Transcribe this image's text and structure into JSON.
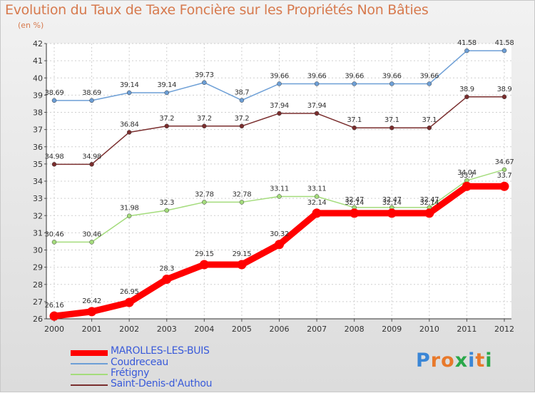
{
  "chart_data": {
    "type": "line",
    "title": "Evolution du Taux de Taxe Foncière sur les Propriétés Non Bâties",
    "subtitle": "(en %)",
    "xlabel": "",
    "ylabel": "",
    "x": [
      "2000",
      "2001",
      "2002",
      "2003",
      "2004",
      "2005",
      "2006",
      "2007",
      "2008",
      "2009",
      "2010",
      "2011",
      "2012"
    ],
    "ylim": [
      26,
      42
    ],
    "yticks": [
      "26",
      "27",
      "28",
      "29",
      "30",
      "31",
      "32",
      "33",
      "34",
      "35",
      "36",
      "37",
      "38",
      "39",
      "40",
      "41",
      "42"
    ],
    "legend_position": "bottom-left",
    "series": [
      {
        "name": "MAROLLES-LES-BUIS",
        "color": "#ff0000",
        "values": [
          26.16,
          26.42,
          26.95,
          28.3,
          29.15,
          29.15,
          30.32,
          32.14,
          32.14,
          32.14,
          32.14,
          33.7,
          33.7
        ],
        "labels": [
          "26.16",
          "26.42",
          "26.95",
          "28.3",
          "29.15",
          "29.15",
          "30.32",
          "32.14",
          "32.14",
          "32.14",
          "32.14",
          "33.7",
          "33.7"
        ]
      },
      {
        "name": "Coudreceau",
        "color": "#6d9fd6",
        "values": [
          38.69,
          38.69,
          39.14,
          39.14,
          39.73,
          38.7,
          39.66,
          39.66,
          39.66,
          39.66,
          39.66,
          41.58,
          41.58
        ],
        "labels": [
          "38.69",
          "38.69",
          "39.14",
          "39.14",
          "39.73",
          "38.7",
          "39.66",
          "39.66",
          "39.66",
          "39.66",
          "39.66",
          "41.58",
          "41.58"
        ]
      },
      {
        "name": "Frétigny",
        "color": "#a4dc7c",
        "values": [
          30.46,
          30.46,
          31.98,
          32.3,
          32.78,
          32.78,
          33.11,
          33.11,
          32.47,
          32.47,
          32.47,
          34.04,
          34.67
        ],
        "labels": [
          "30.46",
          "30.46",
          "31.98",
          "32.3",
          "32.78",
          "32.78",
          "33.11",
          "33.11",
          "32.47",
          "32.47",
          "32.47",
          "34.04",
          "34.67"
        ]
      },
      {
        "name": "Saint-Denis-d'Authou",
        "color": "#7a2e2e",
        "values": [
          34.98,
          34.98,
          36.84,
          37.2,
          37.2,
          37.2,
          37.94,
          37.94,
          37.1,
          37.1,
          37.1,
          38.9,
          38.9
        ],
        "labels": [
          "34.98",
          "34.98",
          "36.84",
          "37.2",
          "37.2",
          "37.2",
          "37.94",
          "37.94",
          "37.1",
          "37.1",
          "37.1",
          "38.9",
          "38.9"
        ]
      }
    ]
  },
  "logo": {
    "letters": [
      "P",
      "r",
      "o",
      "x",
      "i",
      "t",
      "i"
    ],
    "colors": [
      "#3a86d6",
      "#e8792b",
      "#e8792b",
      "#2aa84a",
      "#3a86d6",
      "#e8792b",
      "#2aa84a"
    ]
  }
}
